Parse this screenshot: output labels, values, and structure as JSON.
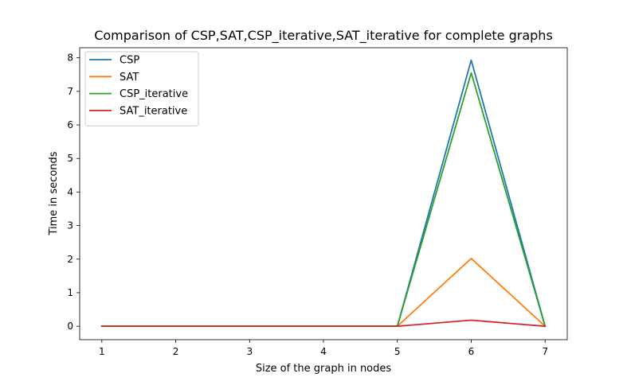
{
  "chart_data": {
    "type": "line",
    "title": "Comparison of CSP,SAT,CSP_iterative,SAT_iterative for complete graphs",
    "xlabel": "Size of the graph in nodes",
    "ylabel": "Time in seconds",
    "x": [
      1,
      2,
      3,
      4,
      5,
      6,
      7
    ],
    "xlim": [
      0.7,
      7.3
    ],
    "ylim": [
      -0.4,
      8.3
    ],
    "xticks": [
      1,
      2,
      3,
      4,
      5,
      6,
      7
    ],
    "yticks": [
      0,
      1,
      2,
      3,
      4,
      5,
      6,
      7,
      8
    ],
    "grid": false,
    "legend_position": "top-left",
    "series": [
      {
        "name": "CSP",
        "color": "#1f77b4",
        "values": [
          0.0,
          0.0,
          0.0,
          0.0,
          0.0,
          7.93,
          0.0
        ]
      },
      {
        "name": "SAT",
        "color": "#ff7f0e",
        "values": [
          0.0,
          0.0,
          0.0,
          0.0,
          0.0,
          2.02,
          0.0
        ]
      },
      {
        "name": "CSP_iterative",
        "color": "#2ca02c",
        "values": [
          0.0,
          0.0,
          0.0,
          0.0,
          0.0,
          7.55,
          0.0
        ]
      },
      {
        "name": "SAT_iterative",
        "color": "#d62728",
        "values": [
          0.0,
          0.0,
          0.0,
          0.0,
          0.0,
          0.18,
          0.0
        ]
      }
    ]
  }
}
